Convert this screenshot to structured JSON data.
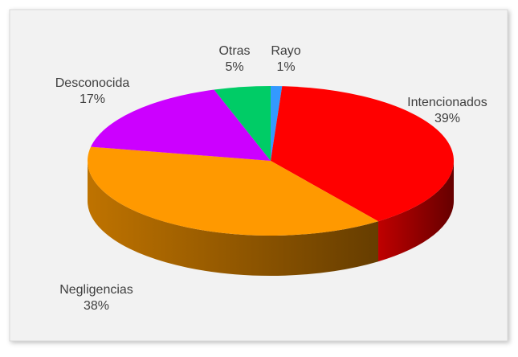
{
  "chart_data": {
    "type": "pie3d",
    "categories": [
      "Rayo",
      "Intencionados",
      "Negligencias",
      "Desconocida",
      "Otras"
    ],
    "values": [
      1,
      39,
      38,
      17,
      5
    ],
    "value_labels": [
      "1%",
      "39%",
      "38%",
      "17%",
      "5%"
    ],
    "colors": [
      "#3399ff",
      "#ff0000",
      "#ff9900",
      "#cc00ff",
      "#00cc66"
    ]
  }
}
